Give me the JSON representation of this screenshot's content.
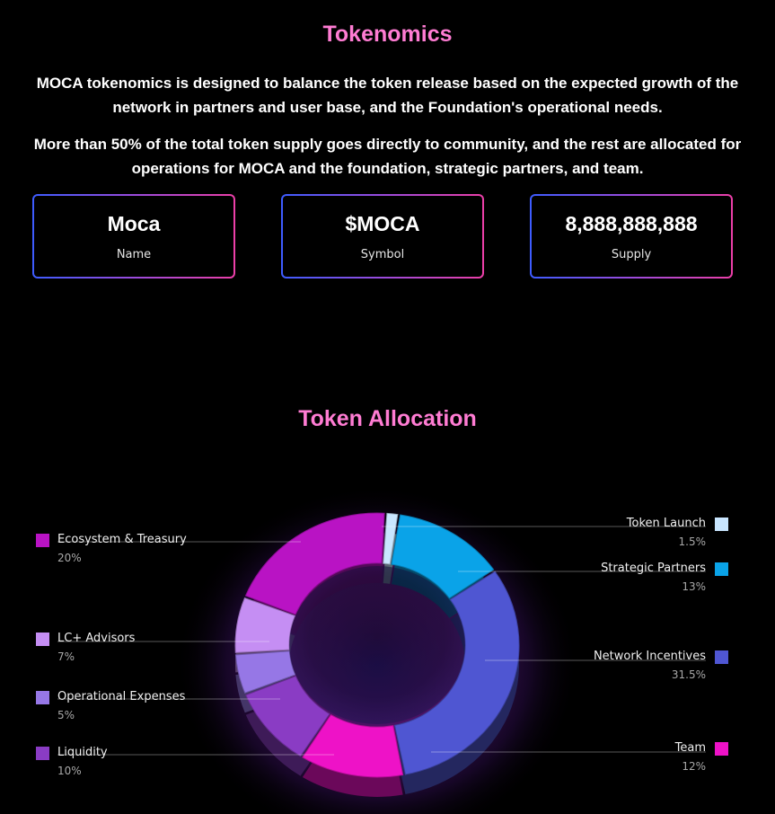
{
  "header": {
    "title": "Tokenomics",
    "intro_1": "MOCA tokenomics is designed to balance the token release based on the expected growth of the network in partners and user base, and the Foundation's operational needs.",
    "intro_2": "More than 50% of the total token supply goes directly to community, and the rest are allocated for operations for MOCA and the foundation, strategic partners, and team."
  },
  "cards": {
    "name": {
      "value": "Moca",
      "label": "Name"
    },
    "symbol": {
      "value": "$MOCA",
      "label": "Symbol"
    },
    "supply": {
      "value": "8,888,888,888",
      "label": "Supply"
    }
  },
  "allocation": {
    "title": "Token Allocation"
  },
  "chart_data": {
    "type": "pie",
    "style": "donut-3d",
    "title": "Token Allocation",
    "slices": [
      {
        "name": "Token Launch",
        "value": 1.5,
        "value_label": "1.5%",
        "color": "#c9e6ff"
      },
      {
        "name": "Strategic Partners",
        "value": 13,
        "value_label": "13%",
        "color": "#0aa3e8"
      },
      {
        "name": "Network Incentives",
        "value": 31.5,
        "value_label": "31.5%",
        "color": "#4f56d2"
      },
      {
        "name": "Team",
        "value": 12,
        "value_label": "12%",
        "color": "#ee12c7"
      },
      {
        "name": "Liquidity",
        "value": 10,
        "value_label": "10%",
        "color": "#8a3cc4"
      },
      {
        "name": "Operational Expenses",
        "value": 5,
        "value_label": "5%",
        "color": "#9677e6"
      },
      {
        "name": "LC+ Advisors",
        "value": 7,
        "value_label": "7%",
        "color": "#c58ef3"
      },
      {
        "name": "Ecosystem & Treasury",
        "value": 20,
        "value_label": "20%",
        "color": "#b913c4"
      }
    ],
    "legend": "labels placed left and right of the chart with leader lines"
  }
}
